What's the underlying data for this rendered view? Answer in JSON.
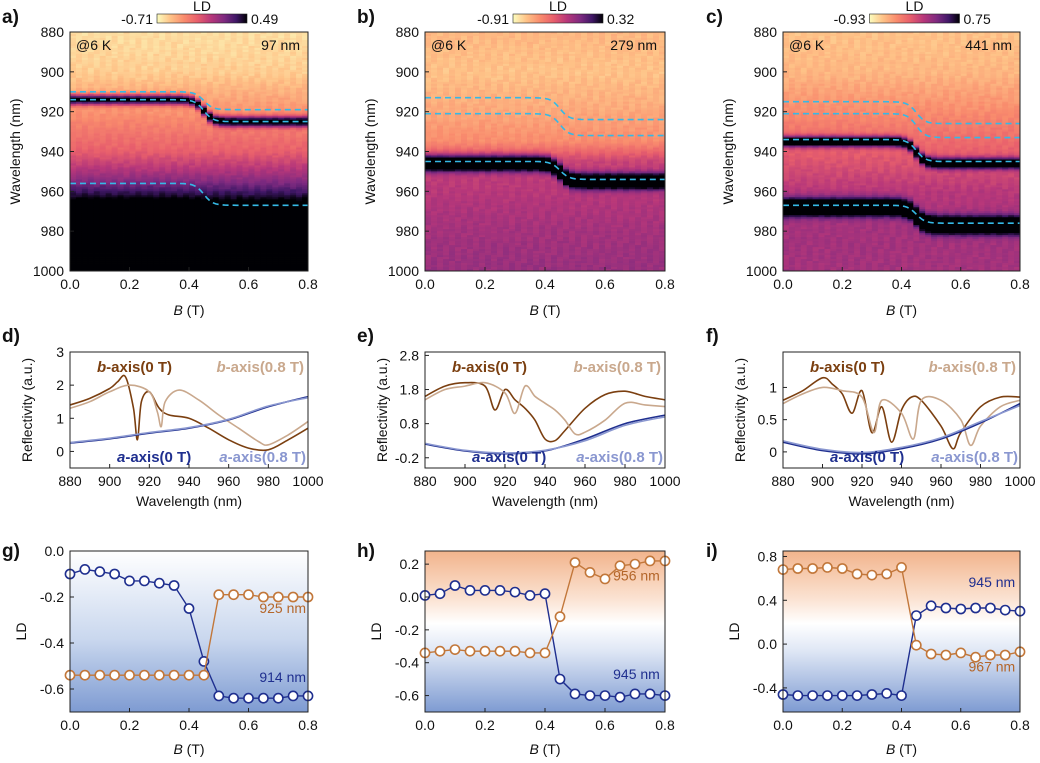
{
  "figure": {
    "panels": [
      "a)",
      "b)",
      "c)",
      "d)",
      "e)",
      "f)",
      "g)",
      "h)",
      "i)"
    ]
  },
  "chart_data": [
    {
      "id": "a",
      "type": "heatmap",
      "xlabel_prefix": "B",
      "xlabel_unit": " (T)",
      "ylabel": "Wavelength (nm)",
      "xlim": [
        0,
        0.8
      ],
      "ylim": [
        1000,
        880
      ],
      "xticks": [
        "0.0",
        "0.2",
        "0.4",
        "0.6",
        "0.8"
      ],
      "yticks": [
        "880",
        "900",
        "920",
        "940",
        "960",
        "980",
        "1000"
      ],
      "colorbar": {
        "label": "LD",
        "min": "-0.71",
        "max": "0.49"
      },
      "annotations": {
        "temperature": "@6 K",
        "thickness": "97 nm"
      },
      "switch_field": 0.45,
      "dashed_lines": [
        [
          910,
          919
        ],
        [
          914,
          925
        ],
        [
          956,
          967
        ]
      ],
      "absorption_bands": [
        {
          "before": 914,
          "after": 925,
          "width": 2.5,
          "strength": 0.85
        },
        {
          "before": 985,
          "after": 986,
          "width": 16,
          "strength": 1.0
        }
      ],
      "background_profile": [
        [
          880,
          0.08
        ],
        [
          900,
          0.12
        ],
        [
          920,
          0.28
        ],
        [
          940,
          0.45
        ],
        [
          950,
          0.62
        ],
        [
          960,
          0.8
        ],
        [
          975,
          0.95
        ],
        [
          1000,
          0.9
        ]
      ]
    },
    {
      "id": "b",
      "type": "heatmap",
      "xlabel_prefix": "B",
      "xlabel_unit": " (T)",
      "ylabel": "Wavelength (nm)",
      "xlim": [
        0,
        0.8
      ],
      "ylim": [
        1000,
        880
      ],
      "xticks": [
        "0.0",
        "0.2",
        "0.4",
        "0.6",
        "0.8"
      ],
      "yticks": [
        "880",
        "900",
        "920",
        "940",
        "960",
        "980",
        "1000"
      ],
      "colorbar": {
        "label": "LD",
        "min": "-0.91",
        "max": "0.32"
      },
      "annotations": {
        "temperature": "@6 K",
        "thickness": "279 nm"
      },
      "switch_field": 0.45,
      "dashed_lines": [
        [
          913,
          924
        ],
        [
          921,
          932
        ],
        [
          945,
          954
        ]
      ],
      "absorption_bands": [
        {
          "before": 946,
          "after": 955,
          "width": 3.5,
          "strength": 1.0
        }
      ],
      "background_profile": [
        [
          880,
          0.18
        ],
        [
          900,
          0.15
        ],
        [
          920,
          0.22
        ],
        [
          935,
          0.3
        ],
        [
          945,
          0.55
        ],
        [
          960,
          0.6
        ],
        [
          980,
          0.65
        ],
        [
          1000,
          0.68
        ]
      ]
    },
    {
      "id": "c",
      "type": "heatmap",
      "xlabel_prefix": "B",
      "xlabel_unit": " (T)",
      "ylabel": "Wavelength (nm)",
      "xlim": [
        0,
        0.8
      ],
      "ylim": [
        1000,
        880
      ],
      "xticks": [
        "0.0",
        "0.2",
        "0.4",
        "0.6",
        "0.8"
      ],
      "yticks": [
        "880",
        "900",
        "920",
        "940",
        "960",
        "980",
        "1000"
      ],
      "colorbar": {
        "label": "LD",
        "min": "-0.93",
        "max": "0.75"
      },
      "annotations": {
        "temperature": "@6 K",
        "thickness": "441 nm"
      },
      "switch_field": 0.45,
      "dashed_lines": [
        [
          915,
          926
        ],
        [
          921,
          933
        ],
        [
          934,
          945
        ],
        [
          967,
          976
        ]
      ],
      "absorption_bands": [
        {
          "before": 935,
          "after": 946,
          "width": 2.5,
          "strength": 0.9
        },
        {
          "before": 968,
          "after": 977,
          "width": 4,
          "strength": 1.0
        }
      ],
      "background_profile": [
        [
          880,
          0.15
        ],
        [
          900,
          0.18
        ],
        [
          920,
          0.3
        ],
        [
          940,
          0.45
        ],
        [
          960,
          0.6
        ],
        [
          980,
          0.65
        ],
        [
          1000,
          0.65
        ]
      ]
    },
    {
      "id": "d",
      "type": "line",
      "xlabel": "Wavelength (nm)",
      "ylabel": "Reflectivity (a.u.)",
      "xlim": [
        880,
        1000
      ],
      "ylim": [
        -0.5,
        3
      ],
      "xticks": [
        "880",
        "900",
        "920",
        "940",
        "960",
        "980",
        "1000"
      ],
      "yticks": [
        "0",
        "1",
        "2",
        "3"
      ],
      "legend": {
        "b0": [
          "b",
          "-axis(0 T)"
        ],
        "b8": [
          "b",
          "-axis(0.8 T)"
        ],
        "a0": [
          "a",
          "-axis(0 T)"
        ],
        "a8": [
          "a",
          "-axis(0.8 T)"
        ]
      },
      "series": [
        {
          "name": "b-axis(0 T)",
          "color": "#7b3f10",
          "x": [
            880,
            890,
            900,
            904,
            908,
            912,
            914,
            916,
            920,
            925,
            930,
            940,
            950,
            960,
            970,
            980,
            990,
            1000
          ],
          "y": [
            1.4,
            1.6,
            1.9,
            2.1,
            2.25,
            1.3,
            0.35,
            1.5,
            1.8,
            1.3,
            1.1,
            1.0,
            0.7,
            0.35,
            0.1,
            0.05,
            0.35,
            0.7
          ]
        },
        {
          "name": "b-axis(0.8 T)",
          "color": "#c9a88d",
          "x": [
            880,
            890,
            900,
            910,
            920,
            924,
            926,
            928,
            935,
            945,
            955,
            965,
            975,
            980,
            990,
            1000
          ],
          "y": [
            1.3,
            1.5,
            1.8,
            2.0,
            1.8,
            1.2,
            0.75,
            1.5,
            1.85,
            1.55,
            1.1,
            0.7,
            0.3,
            0.2,
            0.5,
            0.9
          ]
        },
        {
          "name": "a-axis(0 T)",
          "color": "#1f2f8f",
          "x": [
            880,
            900,
            920,
            940,
            960,
            980,
            1000
          ],
          "y": [
            0.25,
            0.38,
            0.55,
            0.7,
            0.95,
            1.35,
            1.65
          ]
        },
        {
          "name": "a-axis(0.8 T)",
          "color": "#8a97d0",
          "x": [
            880,
            900,
            920,
            940,
            960,
            980,
            1000
          ],
          "y": [
            0.27,
            0.4,
            0.57,
            0.72,
            0.97,
            1.37,
            1.62
          ]
        }
      ]
    },
    {
      "id": "e",
      "type": "line",
      "xlabel": "Wavelength (nm)",
      "ylabel": "Reflectivity (a.u.)",
      "xlim": [
        880,
        1000
      ],
      "ylim": [
        -0.5,
        2.9
      ],
      "xticks": [
        "880",
        "900",
        "920",
        "940",
        "960",
        "980",
        "1000"
      ],
      "yticks": [
        "-0.2",
        "0.8",
        "1.8",
        "2.8"
      ],
      "legend": {
        "b0": [
          "b",
          "-axis(0 T)"
        ],
        "b8": [
          "b",
          "-axis(0.8 T)"
        ],
        "a0": [
          "a",
          "-axis(0 T)"
        ],
        "a8": [
          "a",
          "-axis(0.8 T)"
        ]
      },
      "series": [
        {
          "name": "b-axis(0 T)",
          "color": "#7b3f10",
          "x": [
            880,
            890,
            900,
            910,
            915,
            920,
            925,
            930,
            935,
            940,
            945,
            950,
            960,
            970,
            980,
            990,
            1000
          ],
          "y": [
            1.6,
            1.9,
            2.0,
            1.9,
            1.2,
            1.8,
            1.5,
            1.25,
            0.9,
            0.35,
            0.3,
            0.6,
            1.25,
            1.65,
            1.75,
            1.6,
            1.5
          ]
        },
        {
          "name": "b-axis(0.8 T)",
          "color": "#c9a88d",
          "x": [
            880,
            890,
            900,
            910,
            920,
            925,
            930,
            935,
            940,
            945,
            950,
            955,
            960,
            970,
            980,
            990,
            1000
          ],
          "y": [
            1.5,
            1.8,
            1.9,
            2.0,
            1.7,
            1.1,
            1.9,
            1.6,
            1.4,
            1.2,
            0.9,
            0.5,
            0.55,
            0.9,
            1.4,
            1.35,
            1.3
          ]
        },
        {
          "name": "a-axis(0 T)",
          "color": "#1f2f8f",
          "x": [
            880,
            900,
            920,
            940,
            960,
            980,
            1000
          ],
          "y": [
            0.2,
            0.0,
            -0.08,
            0.0,
            0.35,
            0.8,
            1.05
          ]
        },
        {
          "name": "a-axis(0.8 T)",
          "color": "#8a97d0",
          "x": [
            880,
            900,
            920,
            940,
            960,
            980,
            1000
          ],
          "y": [
            0.22,
            0.02,
            -0.06,
            0.02,
            0.3,
            0.75,
            1.0
          ]
        }
      ]
    },
    {
      "id": "f",
      "type": "line",
      "xlabel": "Wavelength (nm)",
      "ylabel": "Reflectivity (a.u.)",
      "xlim": [
        880,
        1000
      ],
      "ylim": [
        -0.25,
        1.55
      ],
      "xticks": [
        "880",
        "900",
        "920",
        "940",
        "960",
        "980",
        "1000"
      ],
      "yticks": [
        "0",
        "0.5",
        "1"
      ],
      "legend": {
        "b0": [
          "b",
          "-axis(0 T)"
        ],
        "b8": [
          "b",
          "-axis(0.8 T)"
        ],
        "a0": [
          "a",
          "-axis(0 T)"
        ],
        "a8": [
          "a",
          "-axis(0.8 T)"
        ]
      },
      "series": [
        {
          "name": "b-axis(0 T)",
          "color": "#7b3f10",
          "x": [
            880,
            890,
            900,
            905,
            910,
            915,
            920,
            925,
            930,
            935,
            940,
            945,
            950,
            960,
            966,
            970,
            980,
            990,
            1000
          ],
          "y": [
            0.8,
            0.95,
            1.15,
            1.05,
            0.9,
            0.6,
            0.95,
            0.3,
            0.7,
            0.15,
            0.65,
            0.85,
            0.8,
            0.4,
            0.05,
            0.3,
            0.7,
            0.85,
            0.85
          ]
        },
        {
          "name": "b-axis(0.8 T)",
          "color": "#c9a88d",
          "x": [
            880,
            890,
            900,
            910,
            920,
            926,
            930,
            940,
            946,
            950,
            960,
            970,
            975,
            980,
            990,
            1000
          ],
          "y": [
            0.75,
            0.9,
            1.0,
            0.95,
            0.85,
            0.3,
            0.8,
            0.6,
            0.2,
            0.8,
            0.8,
            0.5,
            0.1,
            0.4,
            0.7,
            0.8
          ]
        },
        {
          "name": "a-axis(0 T)",
          "color": "#1f2f8f",
          "x": [
            880,
            900,
            920,
            940,
            960,
            980,
            1000
          ],
          "y": [
            0.15,
            0.02,
            -0.03,
            0.05,
            0.2,
            0.45,
            0.75
          ]
        },
        {
          "name": "a-axis(0.8 T)",
          "color": "#8a97d0",
          "x": [
            880,
            900,
            920,
            940,
            960,
            980,
            1000
          ],
          "y": [
            0.17,
            0.04,
            -0.01,
            0.07,
            0.22,
            0.47,
            0.72
          ]
        }
      ]
    },
    {
      "id": "g",
      "type": "scatter",
      "xlabel_prefix": "B",
      "xlabel_unit": " (T)",
      "ylabel": "LD",
      "xlim": [
        0,
        0.8
      ],
      "ylim": [
        -0.7,
        0.0
      ],
      "xticks": [
        "0.0",
        "0.2",
        "0.4",
        "0.6",
        "0.8"
      ],
      "yticks": [
        "0.0",
        "-0.2",
        "-0.4",
        "-0.6"
      ],
      "background": "blue",
      "labels": [
        {
          "text": "925 nm",
          "color": "#b4662a",
          "x": 0.715,
          "y": -0.27
        },
        {
          "text": "914 nm",
          "color": "#1f2f8f",
          "x": 0.715,
          "y": -0.57
        }
      ],
      "x": [
        0,
        0.05,
        0.1,
        0.15,
        0.2,
        0.25,
        0.3,
        0.35,
        0.4,
        0.45,
        0.5,
        0.55,
        0.6,
        0.65,
        0.7,
        0.75,
        0.8
      ],
      "series": [
        {
          "name": "914 nm",
          "color": "#1f2f8f",
          "y": [
            -0.1,
            -0.08,
            -0.09,
            -0.1,
            -0.13,
            -0.13,
            -0.14,
            -0.15,
            -0.25,
            -0.48,
            -0.63,
            -0.64,
            -0.64,
            -0.64,
            -0.64,
            -0.63,
            -0.63
          ]
        },
        {
          "name": "925 nm",
          "color": "#c2773a",
          "y": [
            -0.54,
            -0.54,
            -0.54,
            -0.54,
            -0.54,
            -0.54,
            -0.54,
            -0.54,
            -0.54,
            -0.54,
            -0.19,
            -0.19,
            -0.19,
            -0.2,
            -0.2,
            -0.2,
            -0.2
          ]
        }
      ]
    },
    {
      "id": "h",
      "type": "scatter",
      "xlabel_prefix": "B",
      "xlabel_unit": " (T)",
      "ylabel": "LD",
      "xlim": [
        0,
        0.8
      ],
      "ylim": [
        -0.7,
        0.28
      ],
      "xticks": [
        "0.0",
        "0.2",
        "0.4",
        "0.6",
        "0.8"
      ],
      "yticks": [
        "0.2",
        "0.0",
        "-0.2",
        "-0.4",
        "-0.6"
      ],
      "background": "orange-blue",
      "labels": [
        {
          "text": "956 nm",
          "color": "#b4662a",
          "x": 0.705,
          "y": 0.1
        },
        {
          "text": "945 nm",
          "color": "#1f2f8f",
          "x": 0.705,
          "y": -0.5
        }
      ],
      "x": [
        0,
        0.05,
        0.1,
        0.15,
        0.2,
        0.25,
        0.3,
        0.35,
        0.4,
        0.45,
        0.5,
        0.55,
        0.6,
        0.65,
        0.7,
        0.75,
        0.8
      ],
      "series": [
        {
          "name": "945 nm",
          "color": "#1f2f8f",
          "y": [
            0.01,
            0.02,
            0.07,
            0.04,
            0.04,
            0.04,
            0.03,
            0.01,
            0.02,
            -0.5,
            -0.59,
            -0.6,
            -0.6,
            -0.61,
            -0.59,
            -0.59,
            -0.6
          ]
        },
        {
          "name": "956 nm",
          "color": "#c2773a",
          "y": [
            -0.34,
            -0.33,
            -0.32,
            -0.33,
            -0.33,
            -0.33,
            -0.33,
            -0.34,
            -0.34,
            -0.12,
            0.21,
            0.15,
            0.11,
            0.19,
            0.2,
            0.22,
            0.22
          ]
        }
      ]
    },
    {
      "id": "i",
      "type": "scatter",
      "xlabel_prefix": "B",
      "xlabel_unit": " (T)",
      "ylabel": "LD",
      "xlim": [
        0,
        0.8
      ],
      "ylim": [
        -0.62,
        0.85
      ],
      "xticks": [
        "0.0",
        "0.2",
        "0.4",
        "0.6",
        "0.8"
      ],
      "yticks": [
        "0.8",
        "0.4",
        "0.0",
        "-0.4"
      ],
      "background": "orange-blue",
      "labels": [
        {
          "text": "945 nm",
          "color": "#1f2f8f",
          "x": 0.705,
          "y": 0.52
        },
        {
          "text": "967 nm",
          "color": "#b4662a",
          "x": 0.705,
          "y": -0.25
        }
      ],
      "x": [
        0,
        0.05,
        0.1,
        0.15,
        0.2,
        0.25,
        0.3,
        0.35,
        0.4,
        0.45,
        0.5,
        0.55,
        0.6,
        0.65,
        0.7,
        0.75,
        0.8
      ],
      "series": [
        {
          "name": "945 nm",
          "color": "#1f2f8f",
          "y": [
            -0.46,
            -0.47,
            -0.47,
            -0.47,
            -0.47,
            -0.47,
            -0.46,
            -0.45,
            -0.47,
            0.26,
            0.35,
            0.33,
            0.32,
            0.33,
            0.33,
            0.31,
            0.3
          ]
        },
        {
          "name": "967 nm",
          "color": "#c2773a",
          "y": [
            0.68,
            0.69,
            0.69,
            0.7,
            0.69,
            0.64,
            0.63,
            0.64,
            0.7,
            -0.01,
            -0.09,
            -0.1,
            -0.08,
            -0.12,
            -0.1,
            -0.1,
            -0.07
          ]
        }
      ]
    }
  ]
}
